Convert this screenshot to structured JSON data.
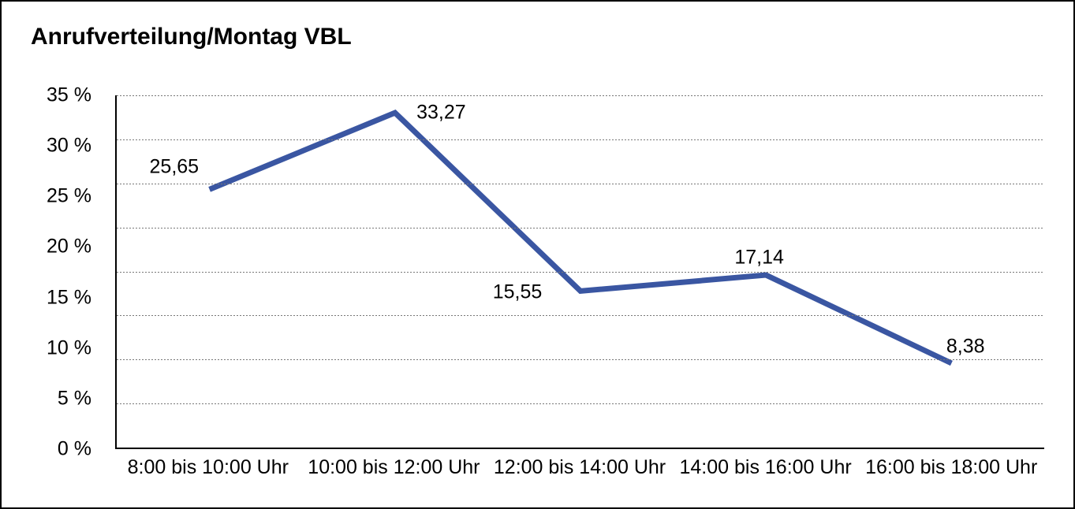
{
  "title": "Anrufverteilung/Montag VBL",
  "chart_data": {
    "type": "line",
    "title": "Anrufverteilung/Montag VBL",
    "categories": [
      "8:00 bis 10:00 Uhr",
      "10:00 bis 12:00 Uhr",
      "12:00 bis 14:00 Uhr",
      "14:00 bis 16:00 Uhr",
      "16:00 bis 18:00 Uhr"
    ],
    "series": [
      {
        "name": "Anrufverteilung Montag VBL",
        "values": [
          25.65,
          33.27,
          15.55,
          17.14,
          8.38
        ],
        "point_labels": [
          "25,65",
          "33,27",
          "15,55",
          "17,14",
          "8,38"
        ],
        "color": "#3A56A2"
      }
    ],
    "xlabel": "",
    "ylabel": "",
    "ylim": [
      0,
      35
    ],
    "ytick_labels": [
      "35 %",
      "30 %",
      "25 %",
      "20 %",
      "15 %",
      "10 %",
      "5 %",
      "0 %"
    ],
    "grid": "horizontal-dotted",
    "gridline_intervals": 8,
    "legend": "none",
    "line_color": "#3A56A2",
    "axis_color": "#000000",
    "background_color": "#ffffff"
  }
}
